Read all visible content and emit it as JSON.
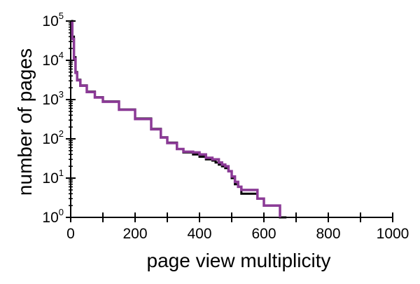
{
  "chart_data": {
    "type": "line",
    "title": "",
    "xlabel": "page view multiplicity",
    "ylabel": "number of pages",
    "xlim": [
      0,
      1000
    ],
    "ylim": [
      1,
      100000
    ],
    "y_scale": "log",
    "grid": false,
    "x_ticks": [
      {
        "value": 0,
        "label": "0"
      },
      {
        "value": 200,
        "label": "200"
      },
      {
        "value": 400,
        "label": "400"
      },
      {
        "value": 600,
        "label": "600"
      },
      {
        "value": 800,
        "label": "800"
      },
      {
        "value": 1000,
        "label": "1000"
      }
    ],
    "y_ticks": [
      {
        "value": 1,
        "base": "10",
        "exp": "0"
      },
      {
        "value": 10,
        "base": "10",
        "exp": "1"
      },
      {
        "value": 100,
        "base": "10",
        "exp": "2"
      },
      {
        "value": 1000,
        "base": "10",
        "exp": "3"
      },
      {
        "value": 10000,
        "base": "10",
        "exp": "4"
      },
      {
        "value": 100000,
        "base": "10",
        "exp": "5"
      }
    ],
    "series": [
      {
        "color": "#000000",
        "x": [
          1,
          5,
          10,
          15,
          20,
          30,
          50,
          75,
          100,
          150,
          200,
          250,
          280,
          300,
          330,
          350,
          380,
          400,
          420,
          440,
          450,
          460,
          470,
          480,
          490,
          500,
          505,
          510,
          520,
          525,
          530,
          570,
          580,
          590,
          600,
          610,
          620,
          630,
          640,
          650,
          660,
          670
        ],
        "y": [
          100000,
          40000,
          12000,
          5000,
          3200,
          2300,
          1600,
          1150,
          900,
          560,
          330,
          180,
          110,
          80,
          55,
          45,
          40,
          35,
          30,
          28,
          25,
          22,
          20,
          18,
          15,
          10,
          10,
          7,
          6,
          6,
          4,
          4,
          3,
          3,
          2,
          2,
          2,
          2,
          2,
          1,
          1,
          1
        ]
      },
      {
        "color": "#8b3a96",
        "x": [
          1,
          5,
          10,
          15,
          20,
          30,
          50,
          75,
          100,
          150,
          200,
          250,
          280,
          300,
          330,
          350,
          380,
          400,
          420,
          440,
          450,
          460,
          470,
          480,
          490,
          500,
          505,
          510,
          520,
          525,
          530,
          570,
          580,
          590,
          600,
          610,
          620,
          630,
          640,
          650
        ],
        "y": [
          90000,
          35000,
          11000,
          4800,
          3100,
          2250,
          1550,
          1130,
          880,
          550,
          320,
          175,
          108,
          78,
          55,
          47,
          45,
          40,
          33,
          30,
          30,
          25,
          22,
          20,
          15,
          11,
          11,
          8,
          6,
          6,
          5,
          5,
          3,
          3,
          2,
          2,
          2,
          2,
          2,
          1
        ]
      }
    ]
  }
}
